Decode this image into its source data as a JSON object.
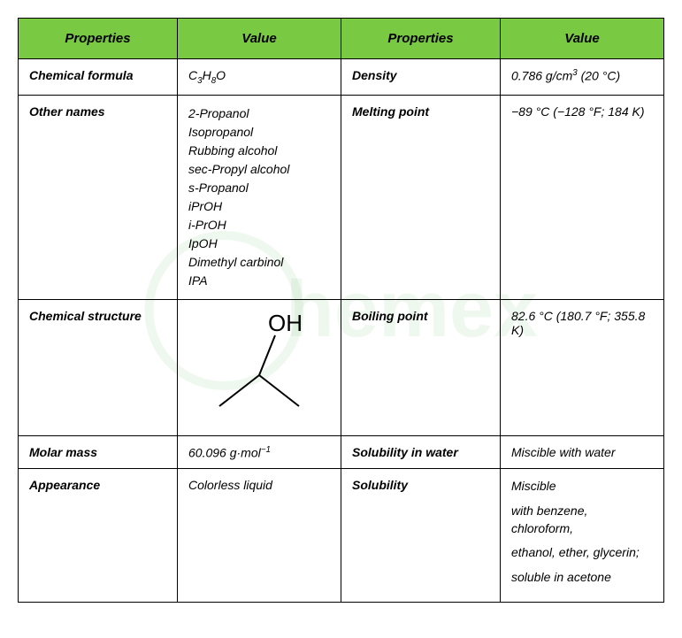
{
  "headers": {
    "col1": "Properties",
    "col2": "Value",
    "col3": "Properties",
    "col4": "Value"
  },
  "rows": [
    {
      "p1": "Chemical formula",
      "v1_html": "C<sub>3</sub>H<sub>8</sub>O",
      "p2": "Density",
      "v2_html": "0.786 g/cm<sup>3</sup> (20 °C)"
    },
    {
      "p1": "Other names",
      "v1_lines": [
        "2-Propanol",
        "Isopropanol",
        "Rubbing alcohol",
        "sec-Propyl alcohol",
        "s-Propanol",
        "iPrOH",
        "i-PrOH",
        "IpOH",
        "Dimethyl carbinol",
        "IPA"
      ],
      "p2": "Melting point",
      "v2": "−89 °C (−128 °F; 184 K)"
    },
    {
      "p1": "Chemical structure",
      "v1_struct": true,
      "p2": "Boiling point",
      "v2": "82.6 °C (180.7 °F; 355.8 K)"
    },
    {
      "p1": "Molar mass",
      "v1_html": "60.096 g·mol<sup>−1</sup>",
      "p2": "Solubility in water",
      "v2": "Miscible with water"
    },
    {
      "p1": "Appearance",
      "v1": "Colorless liquid",
      "p2": "Solubility",
      "v2_lines": [
        "Miscible",
        "with benzene, chloroform,",
        "ethanol, ether, glycerin;",
        "soluble in acetone"
      ]
    }
  ],
  "watermark_text": "hemex",
  "colors": {
    "header_bg": "#7ac943",
    "border": "#000000",
    "text": "#000000",
    "watermark": "rgba(120,200,120,0.12)"
  }
}
